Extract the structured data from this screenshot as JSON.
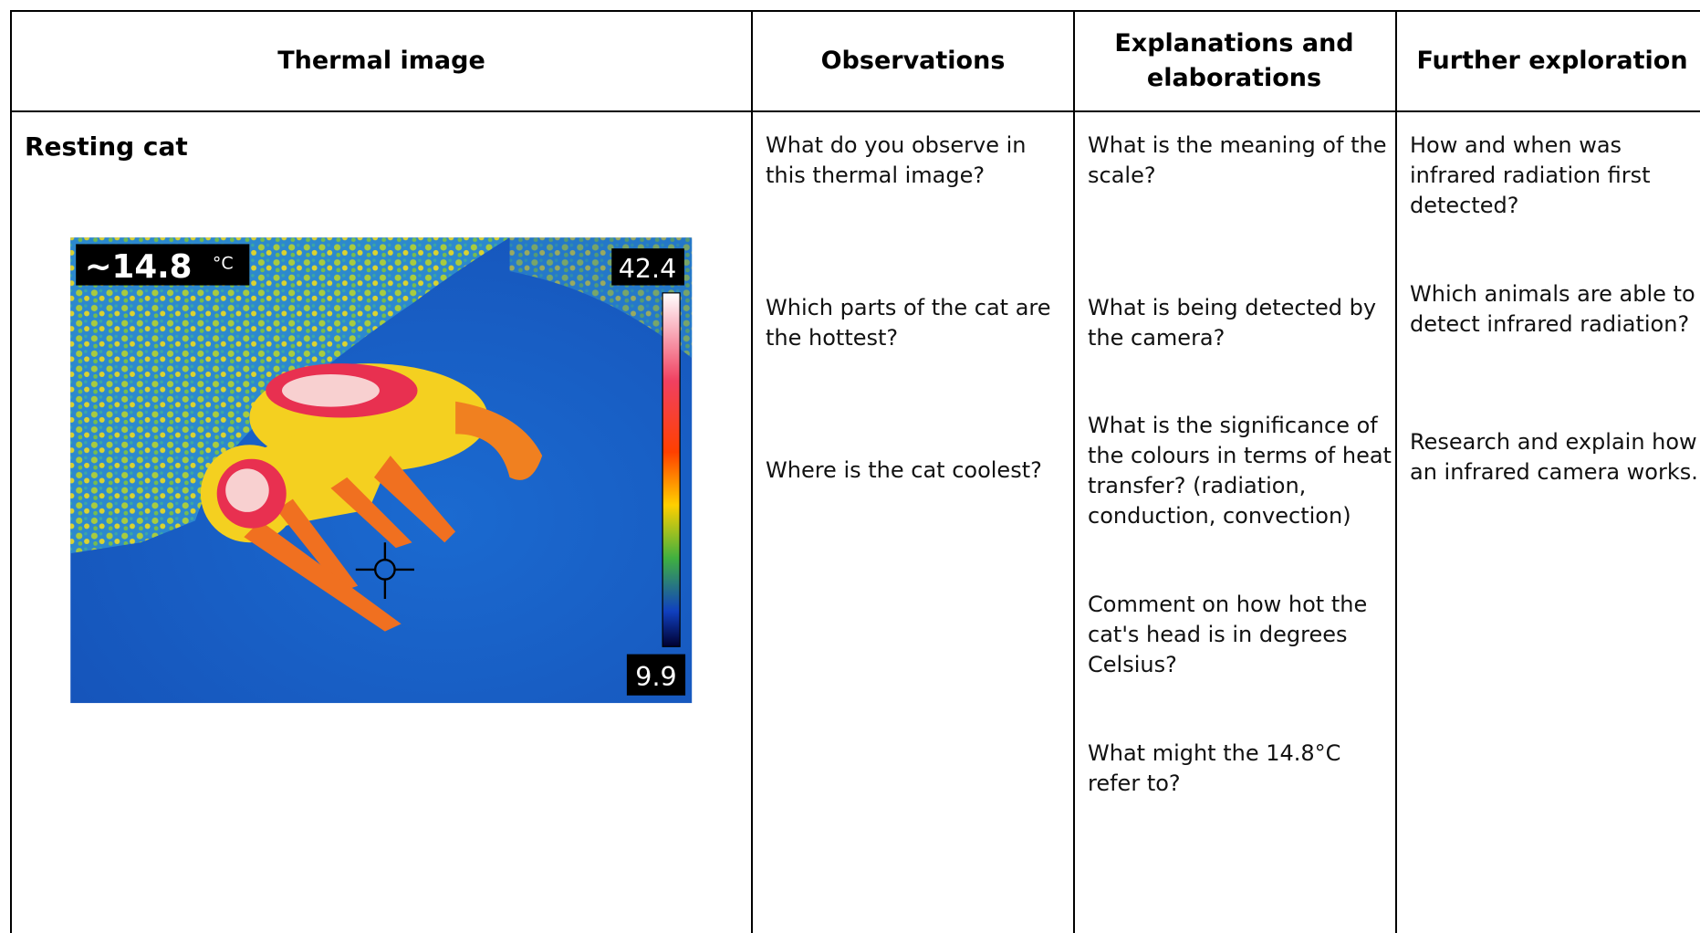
{
  "table": {
    "headers": [
      "Thermal image",
      "Observations",
      "Explanations and elaborations",
      "Further exploration"
    ],
    "rows": [
      {
        "title": "Resting cat",
        "image": {
          "spot_temperature": "~14.8",
          "unit": "°C",
          "scale_max": "42.4",
          "scale_min": "9.9"
        },
        "observations": [
          "What do you observe in this thermal image?",
          "Which parts of the cat are the hottest?",
          "Where is the cat coolest?"
        ],
        "explanations": [
          "What is the meaning of the scale?",
          "What is being detected by the camera?",
          "What is the significance of the colours in terms of heat transfer? (radiation, conduction, convection)",
          "Comment on how hot the cat's head is in degrees Celsius?",
          "What might the 14.8°C refer to?"
        ],
        "further": [
          "How and when was infrared radiation first detected?",
          "Which animals are able to detect infrared radiation?",
          "Research and explain how an infrared camera works."
        ]
      }
    ]
  }
}
